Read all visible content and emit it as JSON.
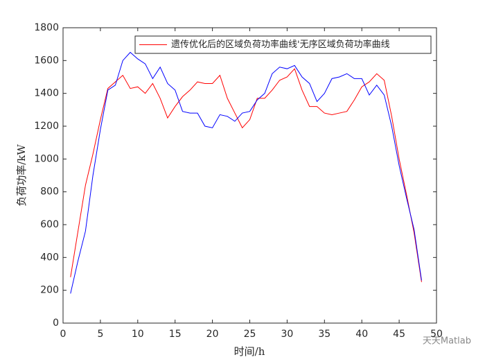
{
  "chart_data": {
    "type": "line",
    "xlabel": "时间/h",
    "ylabel": "负荷功率/kW",
    "x": [
      1,
      2,
      3,
      4,
      5,
      6,
      7,
      8,
      9,
      10,
      11,
      12,
      13,
      14,
      15,
      16,
      17,
      18,
      19,
      20,
      21,
      22,
      23,
      24,
      25,
      26,
      27,
      28,
      29,
      30,
      31,
      32,
      33,
      34,
      35,
      36,
      37,
      38,
      39,
      40,
      41,
      42,
      43,
      44,
      45,
      46,
      47,
      48
    ],
    "series": [
      {
        "name": "遗传优化后的区域负荷功率曲线'无序区域负荷功率曲线",
        "color": "#ff0000",
        "values": [
          280,
          560,
          840,
          1030,
          1240,
          1430,
          1470,
          1510,
          1430,
          1440,
          1400,
          1460,
          1370,
          1250,
          1320,
          1380,
          1420,
          1470,
          1460,
          1460,
          1510,
          1370,
          1280,
          1190,
          1240,
          1370,
          1370,
          1420,
          1480,
          1500,
          1550,
          1420,
          1320,
          1320,
          1280,
          1270,
          1280,
          1290,
          1360,
          1440,
          1470,
          1520,
          1480,
          1260,
          1000,
          780,
          550,
          250
        ]
      },
      {
        "color": "#0000ff",
        "values": [
          180,
          380,
          560,
          900,
          1180,
          1420,
          1450,
          1600,
          1650,
          1610,
          1580,
          1490,
          1560,
          1460,
          1420,
          1290,
          1280,
          1280,
          1200,
          1190,
          1270,
          1260,
          1230,
          1280,
          1290,
          1360,
          1400,
          1520,
          1560,
          1550,
          1570,
          1500,
          1460,
          1350,
          1400,
          1490,
          1500,
          1520,
          1490,
          1490,
          1390,
          1450,
          1390,
          1200,
          960,
          760,
          570,
          260
        ]
      }
    ],
    "xlim": [
      0,
      50
    ],
    "xticks": [
      0,
      5,
      10,
      15,
      20,
      25,
      30,
      35,
      40,
      45,
      50
    ],
    "ylim": [
      0,
      1800
    ],
    "yticks": [
      0,
      200,
      400,
      600,
      800,
      1000,
      1200,
      1400,
      1600,
      1800
    ],
    "legend": "upper right",
    "watermark": "天天Matlab"
  }
}
